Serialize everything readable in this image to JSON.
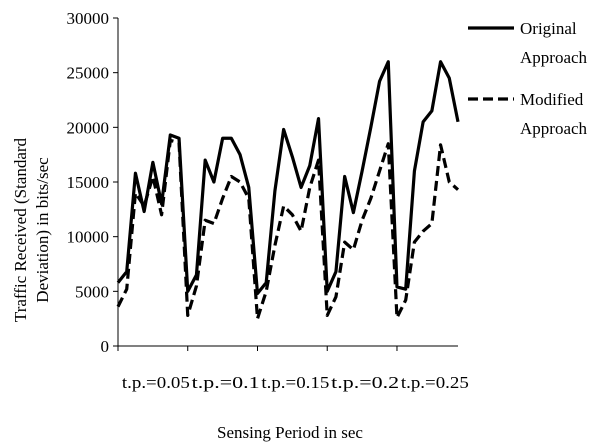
{
  "chart_data": {
    "type": "line",
    "title": "",
    "xlabel": "Sensing Period in sec",
    "ylabel": "Traffic Received  (Standard Deviation) in bits/sec",
    "ylabel_lines": [
      "Traffic Received  (Standard",
      "Deviation) in bits/sec"
    ],
    "ylim": [
      0,
      30000
    ],
    "yticks": [
      0,
      5000,
      10000,
      15000,
      20000,
      25000,
      30000
    ],
    "xlim": [
      0,
      39
    ],
    "x_group_labels": [
      "t.p.=0.05",
      "t.p.=0.1",
      "t.p.=0.15",
      "t.p.=0.2",
      "t.p.=0.25"
    ],
    "x_group_size": 8,
    "grid": false,
    "legend_position": "right",
    "series": [
      {
        "name": "Original Approach",
        "name_lines": [
          "Original",
          "Approach"
        ],
        "style": "solid",
        "color": "#000000",
        "values": [
          5800,
          6800,
          15800,
          12300,
          16800,
          13000,
          19300,
          19000,
          5000,
          6500,
          17000,
          15000,
          19000,
          19000,
          17500,
          14500,
          4800,
          5800,
          14200,
          19800,
          17300,
          14500,
          16500,
          20800,
          5000,
          6800,
          15500,
          12200,
          16000,
          20000,
          24200,
          26000,
          5400,
          5200,
          16000,
          20500,
          21500,
          26000,
          24500,
          20500
        ]
      },
      {
        "name": "Modified Approach",
        "name_lines": [
          "Modified",
          "Approach"
        ],
        "style": "dashed",
        "color": "#000000",
        "values": [
          3600,
          5200,
          14000,
          12800,
          15500,
          12000,
          18800,
          18600,
          2800,
          5500,
          11500,
          11200,
          13500,
          15500,
          15000,
          13500,
          2500,
          5000,
          9200,
          12800,
          12000,
          10500,
          14500,
          17000,
          2800,
          4500,
          9500,
          8800,
          11500,
          13500,
          16000,
          18500,
          2600,
          4200,
          9500,
          10500,
          11200,
          18400,
          15000,
          14300
        ]
      }
    ]
  }
}
